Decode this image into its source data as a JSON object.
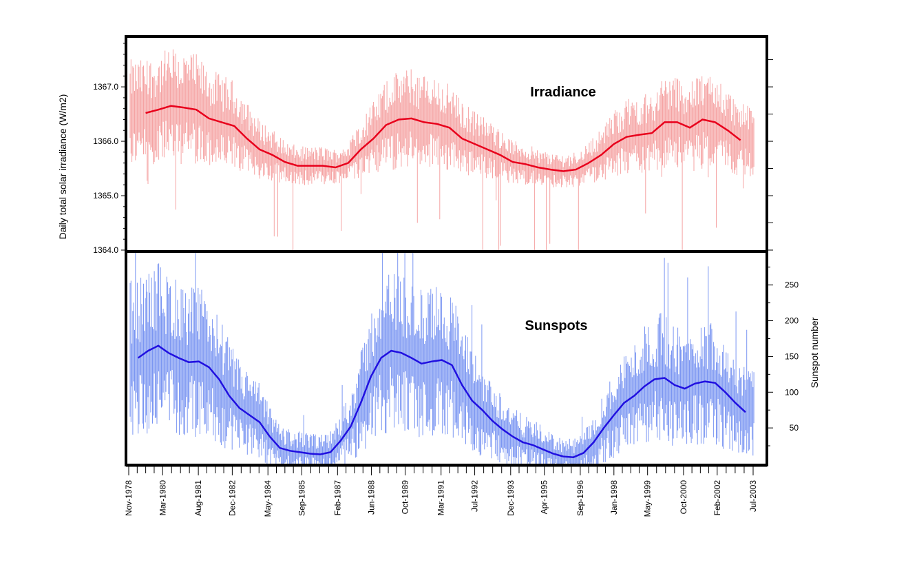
{
  "chart_data": [
    {
      "type": "line",
      "panel": "top",
      "title": "Irradiance",
      "ylabel": "Daily total solar irradiance (W/m2)",
      "ylim": [
        1364.0,
        1367.9
      ],
      "yticks": [
        "1364.0",
        "1365.0",
        "1366.0",
        "1367.0"
      ],
      "yaxis_side": "left",
      "colors": {
        "daily": "#f5a3a3",
        "smoothed": "#e8001c"
      },
      "series": [
        {
          "name": "Smoothed irradiance",
          "x": [
            1979.5,
            1980.0,
            1980.5,
            1981.0,
            1981.5,
            1982.0,
            1982.5,
            1983.0,
            1983.5,
            1984.0,
            1984.5,
            1985.0,
            1985.5,
            1986.0,
            1986.5,
            1987.0,
            1987.5,
            1988.0,
            1988.5,
            1989.0,
            1989.5,
            1990.0,
            1990.5,
            1991.0,
            1991.5,
            1992.0,
            1992.5,
            1993.0,
            1993.5,
            1994.0,
            1994.5,
            1995.0,
            1995.5,
            1996.0,
            1996.5,
            1997.0,
            1997.5,
            1998.0,
            1998.5,
            1999.0,
            1999.5,
            2000.0,
            2000.5,
            2001.0,
            2001.5,
            2002.0,
            2002.5,
            2003.0
          ],
          "values": [
            1366.52,
            1366.58,
            1366.65,
            1366.62,
            1366.58,
            1366.42,
            1366.35,
            1366.28,
            1366.05,
            1365.85,
            1365.75,
            1365.62,
            1365.55,
            1365.55,
            1365.55,
            1365.52,
            1365.6,
            1365.85,
            1366.05,
            1366.3,
            1366.4,
            1366.42,
            1366.35,
            1366.32,
            1366.25,
            1366.05,
            1365.95,
            1365.85,
            1365.75,
            1365.62,
            1365.58,
            1365.52,
            1365.48,
            1365.45,
            1365.48,
            1365.6,
            1365.75,
            1365.95,
            1366.08,
            1366.12,
            1366.15,
            1366.35,
            1366.35,
            1366.25,
            1366.4,
            1366.35,
            1366.2,
            1366.02
          ]
        }
      ]
    },
    {
      "type": "line",
      "panel": "bottom",
      "title": "Sunspots",
      "ylabel": "Sunspot number",
      "ylim": [
        0,
        295
      ],
      "yticks": [
        "50",
        "100",
        "150",
        "200",
        "250"
      ],
      "yaxis_side": "right",
      "colors": {
        "daily": "#7b96f2",
        "smoothed": "#2010e0"
      },
      "series": [
        {
          "name": "Smoothed sunspot number",
          "x": [
            1979.2,
            1979.6,
            1980.0,
            1980.4,
            1980.8,
            1981.2,
            1981.6,
            1982.0,
            1982.4,
            1982.8,
            1983.2,
            1983.6,
            1984.0,
            1984.4,
            1984.8,
            1985.2,
            1985.6,
            1986.0,
            1986.4,
            1986.8,
            1987.2,
            1987.6,
            1988.0,
            1988.4,
            1988.8,
            1989.2,
            1989.6,
            1990.0,
            1990.4,
            1990.8,
            1991.2,
            1991.6,
            1992.0,
            1992.4,
            1992.8,
            1993.2,
            1993.6,
            1994.0,
            1994.4,
            1994.8,
            1995.2,
            1995.6,
            1996.0,
            1996.4,
            1996.8,
            1997.2,
            1997.6,
            1998.0,
            1998.4,
            1998.8,
            1999.2,
            1999.6,
            2000.0,
            2000.4,
            2000.8,
            2001.2,
            2001.6,
            2002.0,
            2002.4,
            2002.8,
            2003.2
          ],
          "values": [
            148,
            158,
            165,
            155,
            148,
            142,
            143,
            135,
            118,
            95,
            78,
            68,
            58,
            38,
            22,
            18,
            16,
            14,
            13,
            16,
            32,
            52,
            85,
            122,
            148,
            158,
            155,
            148,
            140,
            143,
            145,
            138,
            110,
            88,
            75,
            60,
            48,
            38,
            30,
            26,
            20,
            14,
            10,
            9,
            15,
            30,
            50,
            68,
            85,
            95,
            108,
            118,
            120,
            110,
            105,
            112,
            115,
            113,
            100,
            85,
            72
          ]
        }
      ]
    }
  ],
  "xaxis": {
    "ticks": [
      "Nov-1978",
      "Mar-1980",
      "Aug-1981",
      "Dec-1982",
      "May-1984",
      "Sep-1985",
      "Feb-1987",
      "Jun-1988",
      "Oct-1989",
      "Mar-1991",
      "Jul-1992",
      "Dec-1993",
      "Apr-1995",
      "Sep-1996",
      "Jan-1998",
      "May-1999",
      "Oct-2000",
      "Feb-2002",
      "Jul-2003"
    ],
    "tick_years": [
      1978.83,
      1980.17,
      1981.58,
      1982.92,
      1984.33,
      1985.67,
      1987.08,
      1988.42,
      1989.75,
      1991.17,
      1992.5,
      1993.92,
      1995.25,
      1996.67,
      1998.0,
      1999.33,
      2000.75,
      2002.08,
      2003.5
    ],
    "range": [
      1978.83,
      2003.5
    ]
  }
}
